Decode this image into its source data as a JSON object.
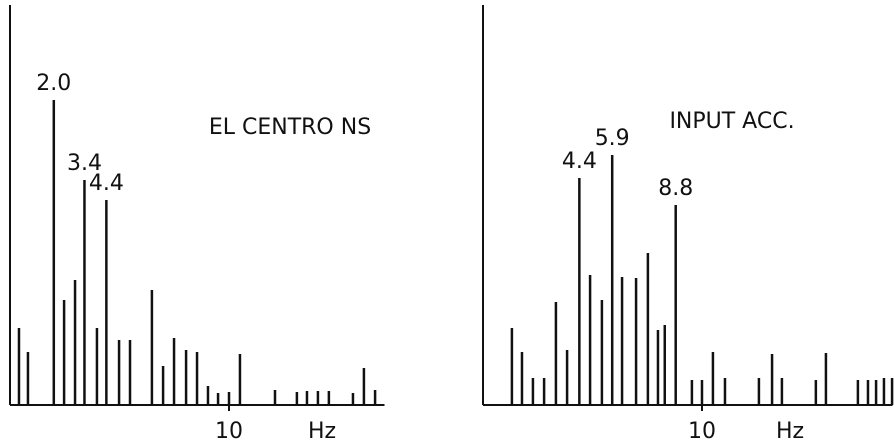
{
  "chart_data": [
    {
      "type": "stem",
      "title": "EL CENTRO NS",
      "xlabel": "Hz",
      "color": "#111111",
      "x": [
        0.41,
        0.82,
        2.0,
        2.47,
        2.97,
        3.4,
        3.97,
        4.4,
        4.98,
        5.48,
        6.48,
        6.99,
        7.49,
        8.04,
        8.54,
        9.04,
        9.5,
        10.0,
        10.5,
        12.1,
        13.1,
        13.56,
        14.06,
        14.56,
        15.66,
        16.16,
        16.67
      ],
      "values": [
        77,
        53,
        305,
        105,
        125,
        225,
        77,
        205,
        65,
        65,
        115,
        39,
        67,
        55,
        53,
        19,
        12,
        13,
        51,
        15,
        13,
        14,
        14,
        14,
        12,
        37,
        15
      ],
      "xlim": [
        0,
        17.1
      ],
      "ylim": [
        0,
        400
      ],
      "xticks": [
        10
      ],
      "annotations": [
        {
          "x": 2.0,
          "text": "2.0"
        },
        {
          "x": 3.4,
          "text": "3.4"
        },
        {
          "x": 4.4,
          "text": "4.4"
        }
      ]
    },
    {
      "type": "stem",
      "title": "INPUT ACC.",
      "xlabel": "Hz",
      "color": "#111111",
      "x": [
        1.32,
        1.78,
        2.28,
        2.79,
        3.33,
        3.84,
        4.4,
        4.89,
        5.43,
        5.9,
        6.35,
        6.99,
        7.53,
        7.99,
        8.3,
        8.8,
        9.54,
        10.0,
        10.5,
        11.05,
        12.6,
        13.2,
        13.65,
        15.2,
        15.66,
        17.12,
        17.58,
        17.95,
        18.31,
        18.68
      ],
      "values": [
        77,
        53,
        27,
        27,
        103,
        55,
        227,
        130,
        105,
        250,
        128,
        127,
        152,
        75,
        80,
        200,
        25,
        25,
        53,
        27,
        27,
        51,
        27,
        25,
        52,
        25,
        25,
        25,
        27,
        27
      ],
      "xlim": [
        0,
        18.7
      ],
      "ylim": [
        0,
        400
      ],
      "xticks": [
        10
      ],
      "annotations": [
        {
          "x": 4.4,
          "text": "4.4"
        },
        {
          "x": 5.9,
          "text": "5.9"
        },
        {
          "x": 8.8,
          "text": "8.8"
        }
      ]
    }
  ]
}
